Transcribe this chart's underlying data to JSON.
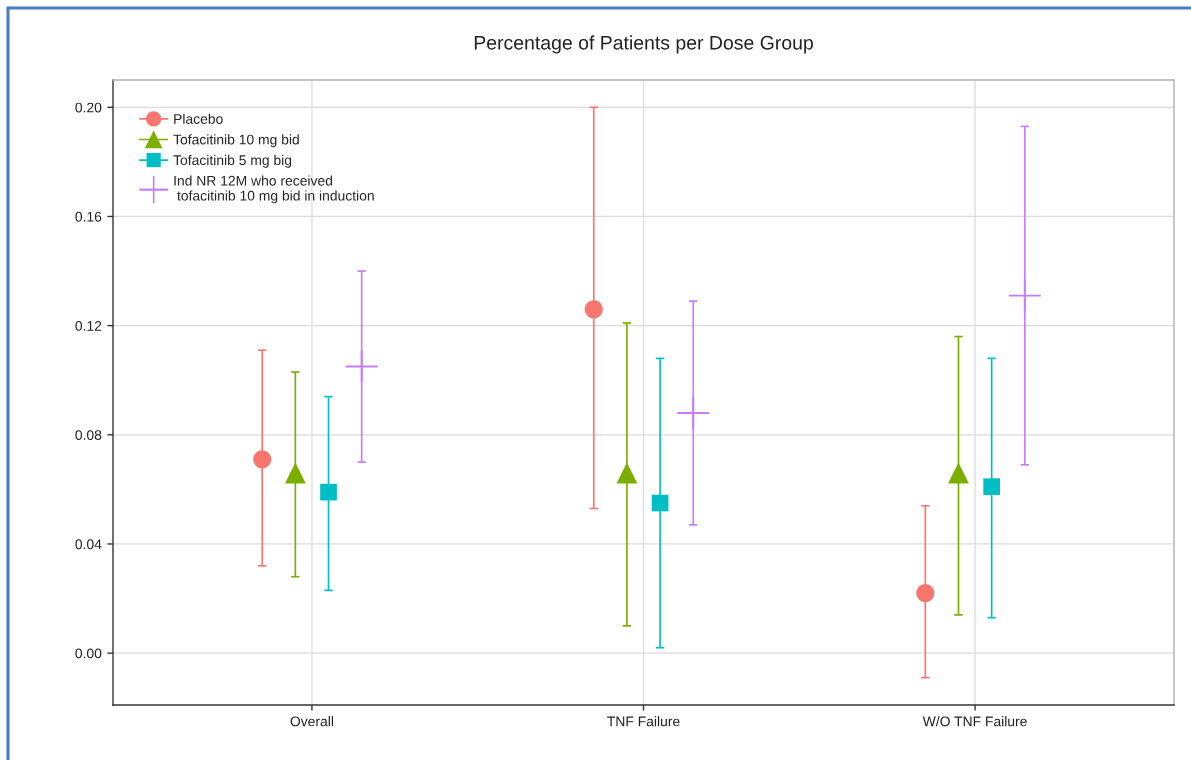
{
  "chart_data": {
    "type": "scatter",
    "title": "Percentage of Patients per Dose Group",
    "categories": [
      "Overall",
      "TNF Failure",
      "W/O TNF Failure"
    ],
    "series": [
      {
        "name": "Placebo",
        "color": "#f8766d",
        "marker": "circle",
        "values": [
          0.071,
          0.126,
          0.022
        ],
        "errors": [
          [
            0.032,
            0.111
          ],
          [
            0.053,
            0.2
          ],
          [
            -0.009,
            0.054
          ]
        ]
      },
      {
        "name": "Tofacitinib 10 mg bid",
        "color": "#7cae00",
        "marker": "triangle",
        "values": [
          0.066,
          0.066,
          0.066
        ],
        "errors": [
          [
            0.028,
            0.103
          ],
          [
            0.01,
            0.121
          ],
          [
            0.014,
            0.116
          ]
        ]
      },
      {
        "name": "Tofacitinib 5 mg big",
        "color": "#00bfc4",
        "marker": "square",
        "values": [
          0.059,
          0.055,
          0.061
        ],
        "errors": [
          [
            0.023,
            0.094
          ],
          [
            0.002,
            0.108
          ],
          [
            0.013,
            0.108
          ]
        ]
      },
      {
        "name": "Ind NR 12M who received\n tofacitinib 10 mg bid in induction",
        "color": "#c77cff",
        "marker": "cross",
        "values": [
          0.105,
          0.088,
          0.131
        ],
        "errors": [
          [
            0.07,
            0.14
          ],
          [
            0.047,
            0.129
          ],
          [
            0.069,
            0.193
          ]
        ]
      }
    ],
    "ylim": [
      -0.019,
      0.21
    ],
    "yticks": [
      {
        "value": 0,
        "label": "0.00"
      },
      {
        "value": 0.04,
        "label": "0.04"
      },
      {
        "value": 0.08,
        "label": "0.08"
      },
      {
        "value": 0.12,
        "label": "0.12"
      },
      {
        "value": 0.16,
        "label": "0.16"
      },
      {
        "value": 0.2,
        "label": "0.20"
      }
    ],
    "grid": true,
    "legend": "top left"
  }
}
